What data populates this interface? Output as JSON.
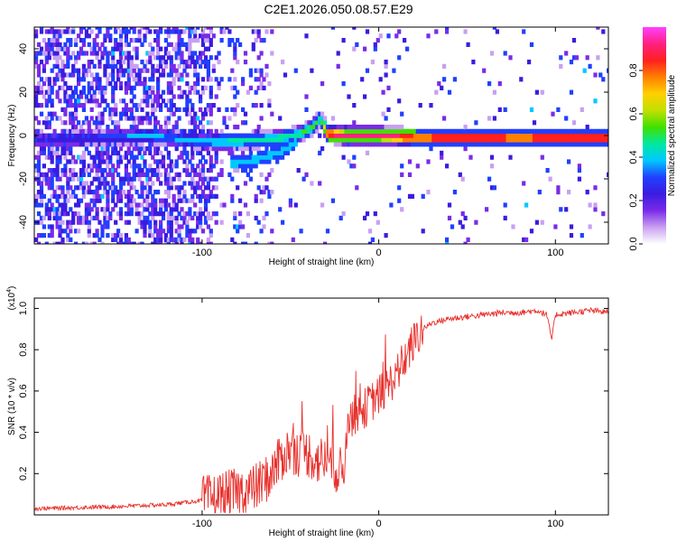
{
  "figure": {
    "title": "C2E1.2026.050.08.57.E29"
  },
  "chart_data": [
    {
      "type": "heatmap",
      "title": "C2E1.2026.050.08.57.E29",
      "xlabel": "Height of straight line (km)",
      "ylabel": "Frequency (Hz)",
      "xlim": [
        -195,
        130
      ],
      "ylim": [
        -50,
        50
      ],
      "xticks": [
        -100,
        0,
        100
      ],
      "xtick_labels": [
        "-100",
        "0",
        "100"
      ],
      "yticks": [
        -40,
        -20,
        0,
        20,
        40
      ],
      "ytick_labels": [
        "-40",
        "-20",
        "0",
        "20",
        "40"
      ],
      "colorbar": {
        "label": "Normalized spectral amplitude",
        "range": [
          0,
          1
        ],
        "ticks": [
          0.0,
          0.2,
          0.4,
          0.6,
          0.8
        ],
        "tick_labels": [
          "0.0",
          "0.2",
          "0.4",
          "0.6",
          "0.8"
        ],
        "colors": [
          "#ffffff",
          "#c9a0f0",
          "#7a2be8",
          "#3a1ce0",
          "#2040ff",
          "#00c8ff",
          "#00e8a0",
          "#40e000",
          "#c0e000",
          "#ffd000",
          "#ff8000",
          "#ff2020",
          "#ff2080",
          "#ff40ff"
        ]
      },
      "ridge": {
        "x": [
          -195,
          -160,
          -130,
          -110,
          -90,
          -70,
          -55,
          -45,
          -38,
          -34,
          -30,
          -20,
          0,
          20,
          50,
          80,
          100,
          130
        ],
        "y": [
          -2,
          -1,
          0,
          -2,
          -3,
          -2,
          -1,
          1,
          4,
          8,
          1,
          0,
          0,
          -1,
          -1,
          -1,
          -1,
          -1
        ],
        "amplitude": [
          0.25,
          0.3,
          0.4,
          0.35,
          0.45,
          0.5,
          0.5,
          0.5,
          0.55,
          0.45,
          0.9,
          0.95,
          0.95,
          0.9,
          0.95,
          0.9,
          0.95,
          0.95
        ]
      },
      "secondary_branch": {
        "x": [
          -85,
          -75,
          -65,
          -55,
          -48
        ],
        "y": [
          -13,
          -12,
          -10,
          -7,
          -3
        ]
      }
    },
    {
      "type": "line",
      "xlabel": "Height of straight line (km)",
      "ylabel": "SNR (10 * v/v)",
      "multiplier_label": "(x10",
      "multiplier_exp": "4",
      "multiplier_close": ")",
      "xlim": [
        -195,
        130
      ],
      "ylim": [
        0,
        1.05
      ],
      "xticks": [
        -100,
        0,
        100
      ],
      "xtick_labels": [
        "-100",
        "0",
        "100"
      ],
      "yticks": [
        0.2,
        0.4,
        0.6,
        0.8,
        1.0
      ],
      "ytick_labels": [
        "0.2",
        "0.4",
        "0.6",
        "0.8",
        "1.0"
      ],
      "series": [
        {
          "name": "SNR",
          "color": "#e8302c",
          "x": [
            -195,
            -150,
            -120,
            -100,
            -90,
            -80,
            -70,
            -60,
            -55,
            -50,
            -45,
            -40,
            -35,
            -30,
            -25,
            -20,
            -18,
            -15,
            -10,
            -5,
            0,
            5,
            10,
            15,
            20,
            25,
            30,
            40,
            50,
            60,
            70,
            80,
            90,
            95,
            98,
            100,
            110,
            120,
            130
          ],
          "y": [
            0.03,
            0.04,
            0.05,
            0.07,
            0.09,
            0.11,
            0.13,
            0.2,
            0.28,
            0.32,
            0.3,
            0.3,
            0.26,
            0.27,
            0.23,
            0.2,
            0.45,
            0.48,
            0.5,
            0.54,
            0.58,
            0.62,
            0.68,
            0.76,
            0.84,
            0.9,
            0.93,
            0.95,
            0.96,
            0.97,
            0.98,
            0.98,
            0.99,
            0.97,
            0.85,
            0.97,
            0.98,
            0.99,
            0.98
          ]
        }
      ]
    }
  ]
}
